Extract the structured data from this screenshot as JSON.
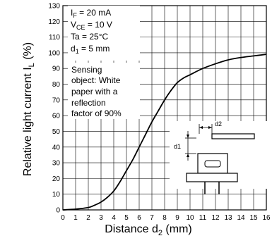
{
  "chart_data": {
    "type": "line",
    "xlabel": "Distance d",
    "xlabel_sub": "2",
    "xlabel_unit": " (mm)",
    "ylabel": "Relative light current  I",
    "ylabel_sub": "L",
    "ylabel_unit": " (%)",
    "xlim": [
      0,
      16
    ],
    "ylim": [
      0,
      130
    ],
    "x_ticks": [
      "0",
      "1",
      "2",
      "3",
      "4",
      "5",
      "6",
      "7",
      "8",
      "9",
      "10",
      "11",
      "12",
      "13",
      "14",
      "15",
      "16"
    ],
    "y_ticks": [
      "0",
      "10",
      "20",
      "30",
      "40",
      "50",
      "60",
      "70",
      "80",
      "90",
      "100",
      "110",
      "120",
      "130"
    ],
    "grid": true,
    "conditions": {
      "if_main": "I",
      "if_sub": "F",
      "if_rest": " = 20 mA",
      "vce_main": "V",
      "vce_sub": "CE",
      "vce_rest": " = 10 V",
      "ta": "Ta = 25°C",
      "d1_main": "d",
      "d1_sub": "1",
      "d1_rest": " = 5 mm"
    },
    "note_lines": [
      "Sensing",
      "object: White",
      "paper with a",
      "reflection",
      "factor of 90%"
    ],
    "diagram_labels": {
      "d2": "d2",
      "d1": "d1"
    },
    "series": [
      {
        "x": [
          0,
          1,
          2,
          2.5,
          3,
          3.5,
          4,
          4.5,
          5,
          5.5,
          6,
          6.5,
          7,
          7.5,
          8,
          8.5,
          9,
          9.5,
          10,
          11,
          12,
          13,
          14,
          15,
          16
        ],
        "values": [
          0,
          0.5,
          1.5,
          3,
          5,
          8,
          12,
          18,
          25,
          32,
          40,
          48,
          56,
          63,
          70,
          76,
          81,
          84,
          86,
          90,
          93,
          95.5,
          97,
          98,
          99
        ]
      }
    ]
  }
}
